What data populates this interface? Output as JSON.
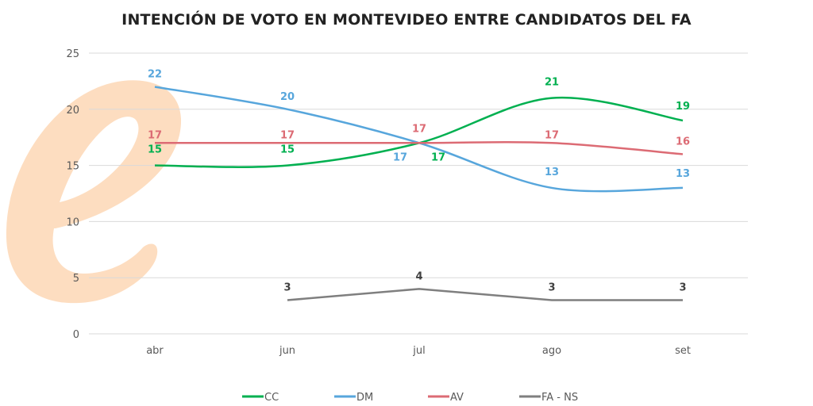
{
  "logo": {
    "text": "e",
    "color": "#fbc899"
  },
  "chart_data": {
    "type": "line",
    "title": "INTENCIÓN DE VOTO EN MONTEVIDEO ENTRE CANDIDATOS DEL FA",
    "categories": [
      "abr",
      "jun",
      "jul",
      "ago",
      "set"
    ],
    "ylim": [
      0,
      25
    ],
    "yticks": [
      0,
      5,
      10,
      15,
      20,
      25
    ],
    "grid": true,
    "legend": "bottom",
    "series": [
      {
        "name": "CC",
        "color": "#00b050",
        "smooth": true,
        "values": [
          15,
          15,
          17,
          21,
          19
        ]
      },
      {
        "name": "DM",
        "color": "#57a6dc",
        "smooth": true,
        "values": [
          22,
          20,
          17,
          13,
          13
        ]
      },
      {
        "name": "AV",
        "color": "#dc6b74",
        "smooth": true,
        "values": [
          17,
          17,
          17,
          17,
          16
        ]
      },
      {
        "name": "FA - NS",
        "color": "#7f7f7f",
        "smooth": false,
        "values": [
          null,
          3,
          4,
          3,
          3
        ]
      }
    ]
  }
}
